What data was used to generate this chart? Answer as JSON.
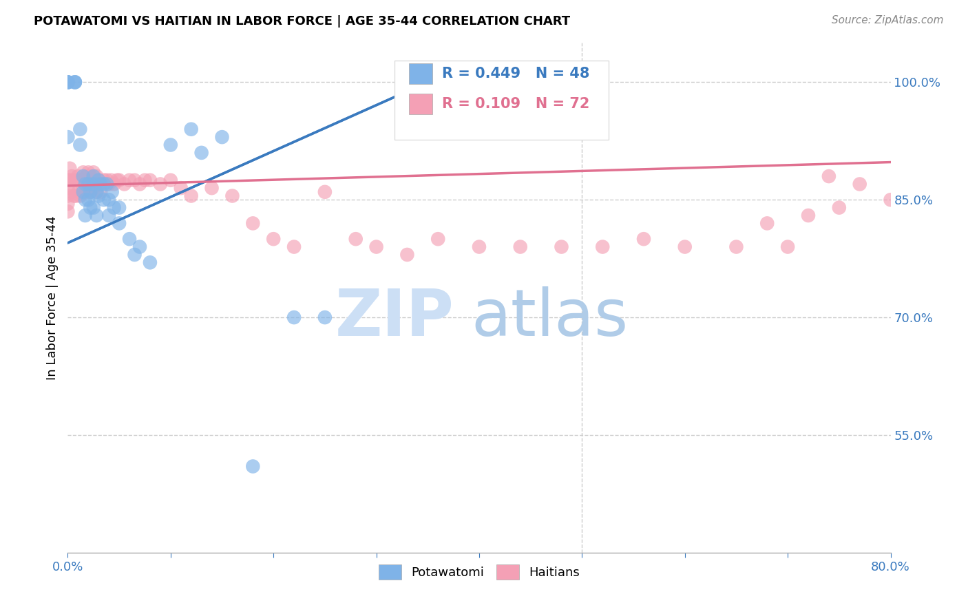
{
  "title": "POTAWATOMI VS HAITIAN IN LABOR FORCE | AGE 35-44 CORRELATION CHART",
  "source": "Source: ZipAtlas.com",
  "ylabel": "In Labor Force | Age 35-44",
  "xlim": [
    0.0,
    0.8
  ],
  "ylim": [
    0.4,
    1.05
  ],
  "xticks": [
    0.0,
    0.1,
    0.2,
    0.3,
    0.4,
    0.5,
    0.6,
    0.7,
    0.8
  ],
  "xticklabels": [
    "0.0%",
    "",
    "",
    "",
    "",
    "",
    "",
    "",
    "80.0%"
  ],
  "ytick_positions": [
    0.55,
    0.7,
    0.85,
    1.0
  ],
  "yticklabels": [
    "55.0%",
    "70.0%",
    "85.0%",
    "100.0%"
  ],
  "grid_color": "#cccccc",
  "background_color": "#ffffff",
  "potawatomi_color": "#7fb3e8",
  "haitian_color": "#f4a0b5",
  "potawatomi_line_color": "#3a7abf",
  "haitian_line_color": "#e07090",
  "legend_R_potawatomi": "R = 0.449",
  "legend_N_potawatomi": "N = 48",
  "legend_R_haitian": "R = 0.109",
  "legend_N_haitian": "N = 72",
  "watermark_zip": "ZIP",
  "watermark_atlas": "atlas",
  "pot_line_x0": 0.0,
  "pot_line_y0": 0.795,
  "pot_line_x1": 0.35,
  "pot_line_y1": 1.0,
  "hai_line_x0": 0.0,
  "hai_line_y0": 0.868,
  "hai_line_x1": 0.8,
  "hai_line_y1": 0.898,
  "potawatomi_x": [
    0.0,
    0.0,
    0.0,
    0.0,
    0.0,
    0.007,
    0.007,
    0.007,
    0.012,
    0.012,
    0.015,
    0.015,
    0.017,
    0.017,
    0.017,
    0.02,
    0.02,
    0.022,
    0.022,
    0.025,
    0.025,
    0.025,
    0.028,
    0.028,
    0.03,
    0.03,
    0.032,
    0.035,
    0.035,
    0.038,
    0.04,
    0.04,
    0.043,
    0.045,
    0.05,
    0.05,
    0.06,
    0.065,
    0.07,
    0.08,
    0.1,
    0.12,
    0.13,
    0.15,
    0.18,
    0.22,
    0.25,
    0.35
  ],
  "potawatomi_y": [
    1.0,
    1.0,
    1.0,
    1.0,
    0.93,
    1.0,
    1.0,
    1.0,
    0.94,
    0.92,
    0.88,
    0.86,
    0.87,
    0.85,
    0.83,
    0.87,
    0.85,
    0.86,
    0.84,
    0.88,
    0.87,
    0.84,
    0.86,
    0.83,
    0.875,
    0.855,
    0.87,
    0.87,
    0.85,
    0.87,
    0.85,
    0.83,
    0.86,
    0.84,
    0.84,
    0.82,
    0.8,
    0.78,
    0.79,
    0.77,
    0.92,
    0.94,
    0.91,
    0.93,
    0.51,
    0.7,
    0.7,
    1.0
  ],
  "haitian_x": [
    0.0,
    0.0,
    0.0,
    0.0,
    0.0,
    0.002,
    0.002,
    0.004,
    0.004,
    0.006,
    0.006,
    0.008,
    0.008,
    0.01,
    0.01,
    0.012,
    0.012,
    0.015,
    0.015,
    0.018,
    0.018,
    0.02,
    0.02,
    0.022,
    0.022,
    0.025,
    0.025,
    0.028,
    0.028,
    0.03,
    0.032,
    0.035,
    0.038,
    0.04,
    0.042,
    0.045,
    0.048,
    0.05,
    0.055,
    0.06,
    0.065,
    0.07,
    0.075,
    0.08,
    0.09,
    0.1,
    0.11,
    0.12,
    0.14,
    0.16,
    0.18,
    0.2,
    0.22,
    0.25,
    0.28,
    0.3,
    0.33,
    0.36,
    0.4,
    0.44,
    0.48,
    0.52,
    0.56,
    0.6,
    0.65,
    0.7,
    0.74,
    0.77,
    0.8,
    0.75,
    0.72,
    0.68
  ],
  "haitian_y": [
    0.875,
    0.865,
    0.855,
    0.845,
    0.835,
    0.89,
    0.875,
    0.88,
    0.86,
    0.875,
    0.855,
    0.875,
    0.855,
    0.88,
    0.86,
    0.875,
    0.855,
    0.885,
    0.865,
    0.88,
    0.86,
    0.885,
    0.865,
    0.88,
    0.86,
    0.885,
    0.865,
    0.88,
    0.86,
    0.875,
    0.86,
    0.875,
    0.875,
    0.87,
    0.875,
    0.87,
    0.875,
    0.875,
    0.87,
    0.875,
    0.875,
    0.87,
    0.875,
    0.875,
    0.87,
    0.875,
    0.865,
    0.855,
    0.865,
    0.855,
    0.82,
    0.8,
    0.79,
    0.86,
    0.8,
    0.79,
    0.78,
    0.8,
    0.79,
    0.79,
    0.79,
    0.79,
    0.8,
    0.79,
    0.79,
    0.79,
    0.88,
    0.87,
    0.85,
    0.84,
    0.83,
    0.82
  ]
}
